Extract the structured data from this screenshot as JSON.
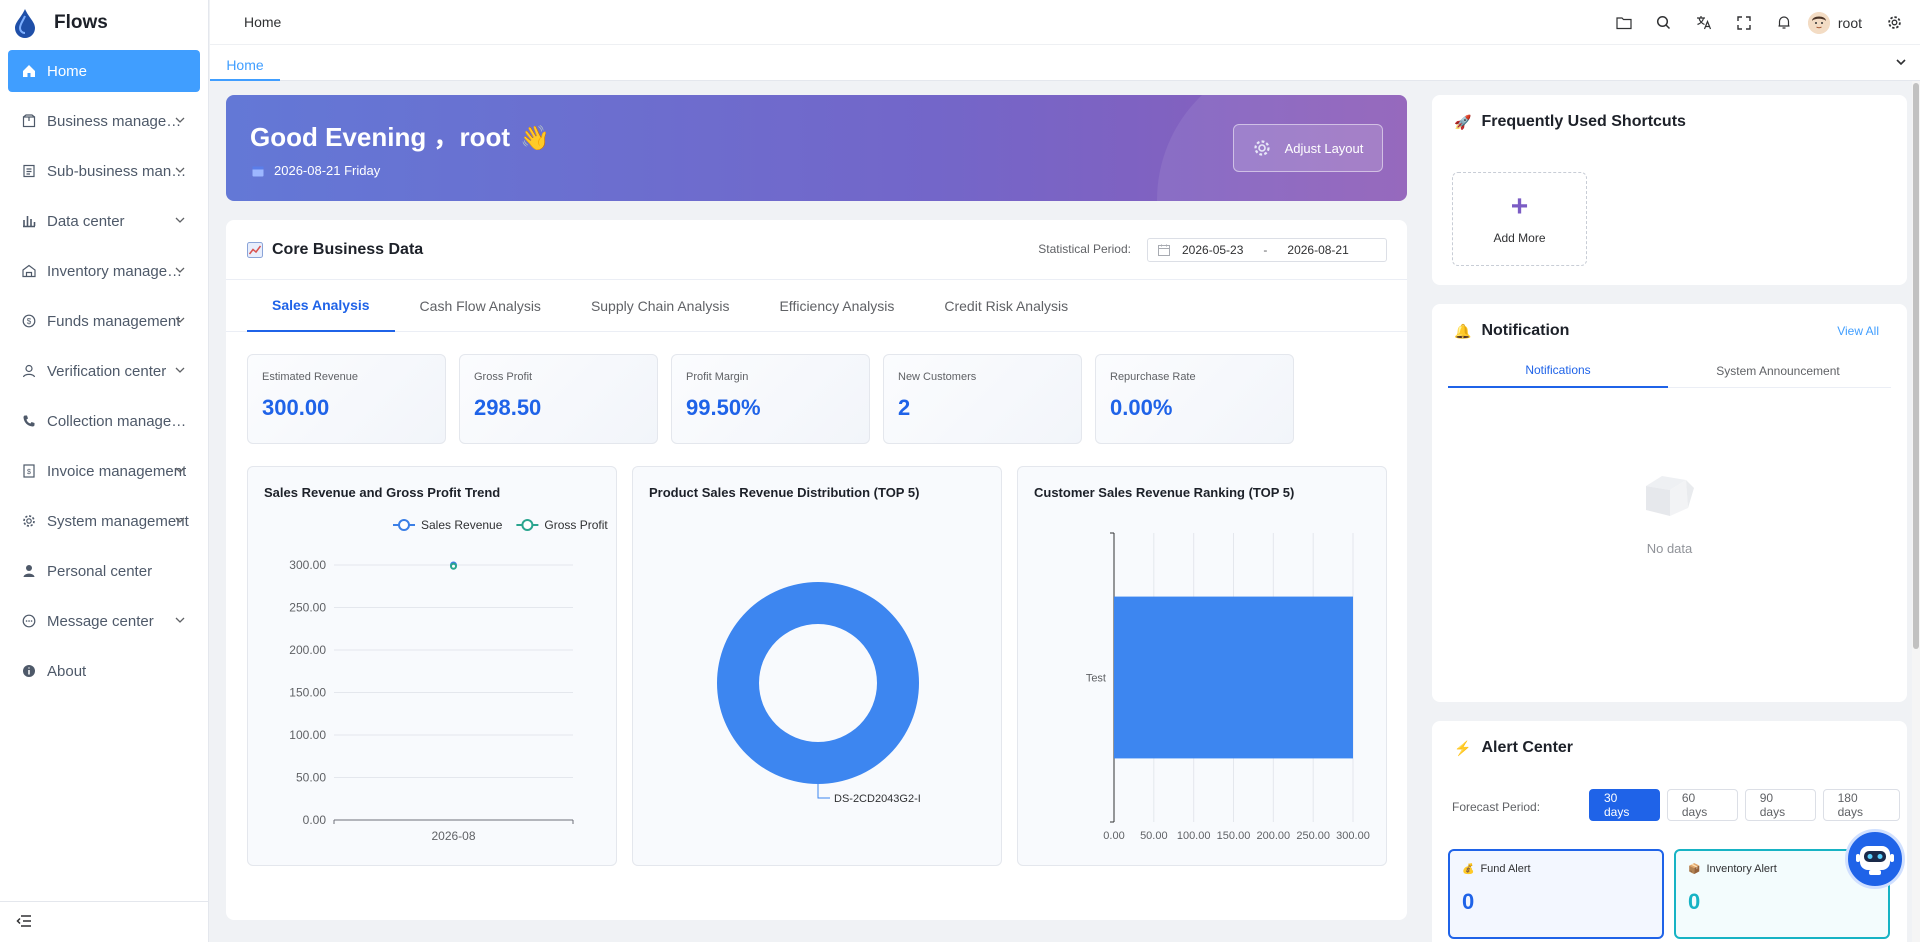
{
  "app": {
    "name": "Flows"
  },
  "sidebar": {
    "items": [
      {
        "label": "Home",
        "icon": "home-icon",
        "active": true,
        "chevron": false
      },
      {
        "label": "Business management",
        "icon": "box-icon",
        "chevron": true
      },
      {
        "label": "Sub-business management",
        "icon": "document-icon",
        "chevron": true
      },
      {
        "label": "Data center",
        "icon": "bar-chart-icon",
        "chevron": true
      },
      {
        "label": "Inventory management",
        "icon": "warehouse-icon",
        "chevron": true
      },
      {
        "label": "Funds management",
        "icon": "dollar-circle-icon",
        "chevron": true
      },
      {
        "label": "Verification center",
        "icon": "user-check-icon",
        "chevron": true
      },
      {
        "label": "Collection management",
        "icon": "phone-icon",
        "chevron": false
      },
      {
        "label": "Invoice management",
        "icon": "invoice-icon",
        "chevron": true
      },
      {
        "label": "System management",
        "icon": "gear-icon",
        "chevron": true
      },
      {
        "label": "Personal center",
        "icon": "person-icon",
        "chevron": false
      },
      {
        "label": "Message center",
        "icon": "chat-icon",
        "chevron": true
      },
      {
        "label": "About",
        "icon": "info-icon",
        "chevron": false
      }
    ]
  },
  "header": {
    "breadcrumb": "Home",
    "user_name": "root",
    "tabs": [
      "Home"
    ]
  },
  "banner": {
    "greeting": "Good Evening ，root",
    "wave": "👋",
    "date": "2026-08-21 Friday",
    "adjust_label": "Adjust Layout"
  },
  "core": {
    "title": "Core Business Data",
    "period_label": "Statistical Period:",
    "period_start": "2026-05-23",
    "period_sep": "-",
    "period_end": "2026-08-21",
    "tabs": [
      "Sales Analysis",
      "Cash Flow Analysis",
      "Supply Chain Analysis",
      "Efficiency Analysis",
      "Credit Risk Analysis"
    ],
    "kpis": [
      {
        "label": "Estimated Revenue",
        "value": "300.00"
      },
      {
        "label": "Gross Profit",
        "value": "298.50"
      },
      {
        "label": "Profit Margin",
        "value": "99.50%"
      },
      {
        "label": "New Customers",
        "value": "2"
      },
      {
        "label": "Repurchase Rate",
        "value": "0.00%"
      }
    ]
  },
  "chart_data": [
    {
      "type": "line",
      "title": "Sales Revenue and Gross Profit Trend",
      "categories": [
        "2026-08"
      ],
      "series": [
        {
          "name": "Sales Revenue",
          "values": [
            300
          ],
          "color": "#3b7fe6"
        },
        {
          "name": "Gross Profit",
          "values": [
            298.5
          ],
          "color": "#2aa58f"
        }
      ],
      "ylim": [
        0,
        300
      ],
      "yticks": [
        "0.00",
        "50.00",
        "100.00",
        "150.00",
        "200.00",
        "250.00",
        "300.00"
      ],
      "legend": "top-right",
      "grid": true
    },
    {
      "type": "pie",
      "title": "Product Sales Revenue Distribution (TOP 5)",
      "slices": [
        {
          "label": "DS-2CD2043G2-I",
          "value": 300,
          "color": "#3d86f0"
        }
      ],
      "donut": true
    },
    {
      "type": "bar",
      "orientation": "horizontal",
      "title": "Customer Sales Revenue Ranking (TOP 5)",
      "categories": [
        "Test"
      ],
      "values": [
        300
      ],
      "xlim": [
        0,
        300
      ],
      "xticks": [
        "0.00",
        "50.00",
        "100.00",
        "150.00",
        "200.00",
        "250.00",
        "300.00"
      ],
      "color": "#3d86f0",
      "grid": true
    }
  ],
  "shortcuts": {
    "title": "Frequently Used Shortcuts",
    "emoji": "🚀",
    "add_label": "Add More"
  },
  "notification": {
    "title": "Notification",
    "emoji": "🔔",
    "view_all": "View All",
    "tabs": [
      "Notifications",
      "System Announcement"
    ],
    "empty": "No data"
  },
  "alert": {
    "title": "Alert Center",
    "emoji": "⚡",
    "forecast_label": "Forecast Period:",
    "periods": [
      "30 days",
      "60 days",
      "90 days",
      "180 days"
    ],
    "cards": [
      {
        "label": "Fund Alert",
        "emoji": "💰",
        "value": "0",
        "color": "#1f63e8"
      },
      {
        "label": "Inventory Alert",
        "emoji": "📦",
        "value": "0",
        "color": "#17b3c4"
      }
    ]
  }
}
